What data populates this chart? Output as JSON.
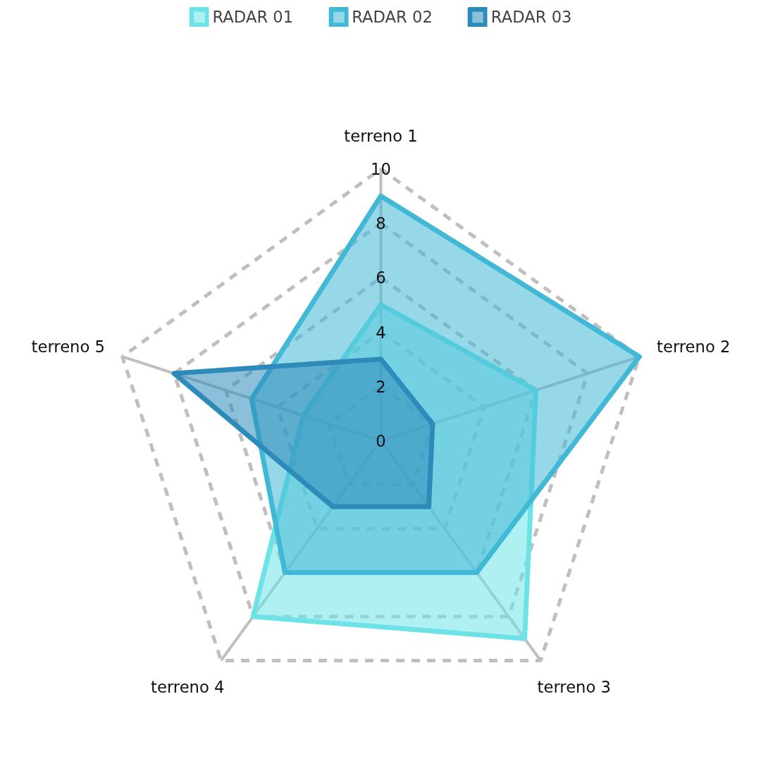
{
  "chart_data": {
    "type": "radar",
    "categories": [
      "terreno 1",
      "terreno 2",
      "terreno 3",
      "terreno 4",
      "terreno 5"
    ],
    "series": [
      {
        "name": "RADAR 01",
        "color": "#6de3e8",
        "values": [
          5,
          6,
          9,
          8,
          3
        ]
      },
      {
        "name": "RADAR 02",
        "color": "#41b8d5",
        "values": [
          9,
          10,
          6,
          6,
          5
        ]
      },
      {
        "name": "RADAR 03",
        "color": "#2d8bba",
        "values": [
          3,
          2,
          3,
          3,
          8
        ]
      }
    ],
    "ylim": [
      0,
      10
    ],
    "yticks": [
      0,
      2,
      4,
      6,
      8,
      10
    ],
    "grid": true,
    "legend": "top"
  }
}
